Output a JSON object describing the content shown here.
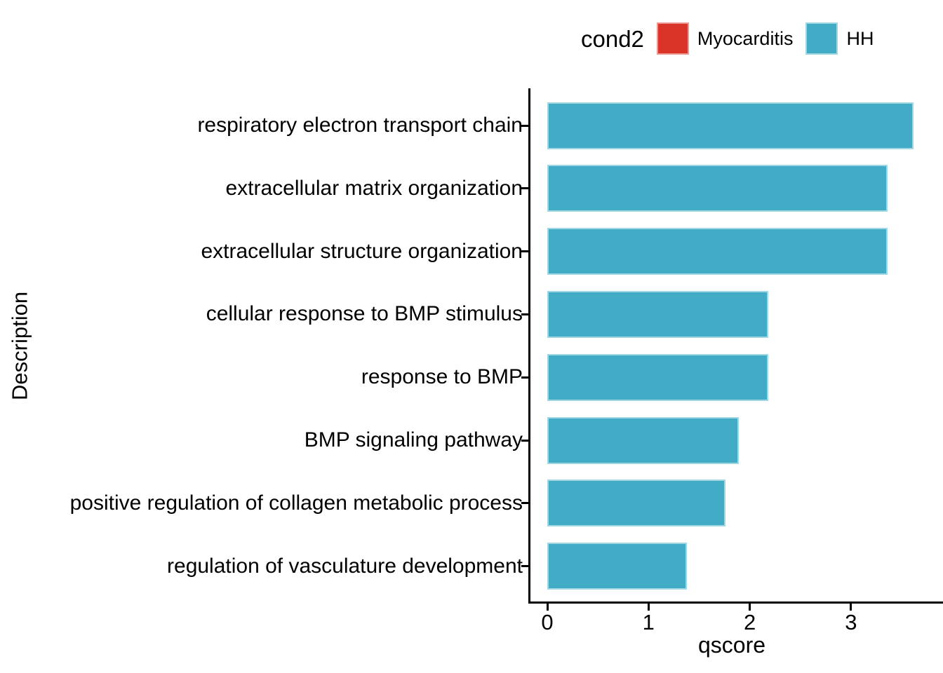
{
  "legend": {
    "title": "cond2",
    "items": [
      {
        "label": "Myocarditis",
        "color": "#DA3327"
      },
      {
        "label": "HH",
        "color": "#42ACC6"
      }
    ]
  },
  "axes": {
    "x_title": "qscore",
    "y_title": "Description",
    "x_tick_labels": [
      "0",
      "1",
      "2",
      "3"
    ]
  },
  "chart_data": {
    "type": "bar",
    "orientation": "horizontal",
    "title": "",
    "xlabel": "qscore",
    "ylabel": "Description",
    "legend_title": "cond2",
    "legend_position": "top",
    "grid": false,
    "xlim": [
      0,
      3.85
    ],
    "x_ticks": [
      0,
      1,
      2,
      3
    ],
    "categories": [
      "respiratory electron transport chain",
      "extracellular matrix organization",
      "extracellular structure organization",
      "cellular response to BMP stimulus",
      "response to BMP",
      "BMP signaling pathway",
      "positive regulation of collagen metabolic process",
      "regulation of vasculature development"
    ],
    "series": [
      {
        "name": "HH",
        "color": "#42ACC6",
        "values": [
          3.62,
          3.36,
          3.36,
          2.18,
          2.18,
          1.89,
          1.76,
          1.38
        ]
      }
    ],
    "bar_groups": [
      "HH",
      "HH",
      "HH",
      "HH",
      "HH",
      "HH",
      "HH",
      "HH"
    ]
  },
  "colors": {
    "background": "#ffffff",
    "axis": "#000000",
    "text": "#000000",
    "bar_fill": "#42ACC6",
    "myocarditis_red": "#DA3327"
  }
}
